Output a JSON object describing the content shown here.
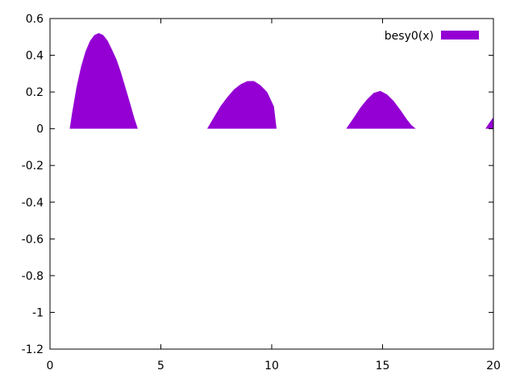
{
  "chart_data": {
    "type": "area",
    "title": "",
    "xlabel": "",
    "ylabel": "",
    "xlim": [
      0,
      20
    ],
    "ylim": [
      -1.2,
      0.6
    ],
    "xticks": [
      0,
      5,
      10,
      15,
      20
    ],
    "xtick_labels": [
      "0",
      "5",
      "10",
      "15",
      "20"
    ],
    "yticks": [
      -1.2,
      -1,
      -0.8,
      -0.6,
      -0.4,
      -0.2,
      0,
      0.2,
      0.4,
      0.6
    ],
    "ytick_labels": [
      "-1.2",
      "-1",
      "-0.8",
      "-0.6",
      "-0.4",
      "-0.2",
      "0",
      "0.2",
      "0.4",
      "0.6"
    ],
    "grid": false,
    "legend_position": "top-right",
    "fill_rule": "positive-only",
    "series": [
      {
        "name": "besy0(x)",
        "color": "#9400d3",
        "x": [
          0.89,
          1.0,
          1.2,
          1.4,
          1.6,
          1.8,
          2.0,
          2.2,
          2.4,
          2.6,
          2.8,
          3.0,
          3.2,
          3.4,
          3.6,
          3.8,
          3.96,
          7.09,
          7.4,
          7.7,
          8.0,
          8.3,
          8.6,
          8.9,
          9.2,
          9.5,
          9.8,
          10.1,
          10.22,
          13.36,
          13.7,
          14.0,
          14.3,
          14.6,
          14.9,
          15.2,
          15.5,
          15.8,
          16.1,
          16.3,
          16.5,
          19.64,
          19.8,
          20.0
        ],
        "y": [
          0.0,
          0.088,
          0.228,
          0.337,
          0.42,
          0.477,
          0.51,
          0.521,
          0.51,
          0.479,
          0.43,
          0.377,
          0.307,
          0.226,
          0.144,
          0.059,
          0.0,
          0.0,
          0.064,
          0.124,
          0.172,
          0.214,
          0.242,
          0.259,
          0.26,
          0.236,
          0.199,
          0.121,
          0.0,
          0.0,
          0.06,
          0.115,
          0.16,
          0.195,
          0.206,
          0.187,
          0.151,
          0.103,
          0.05,
          0.02,
          0.0,
          0.0,
          0.03,
          0.063
        ]
      }
    ]
  }
}
